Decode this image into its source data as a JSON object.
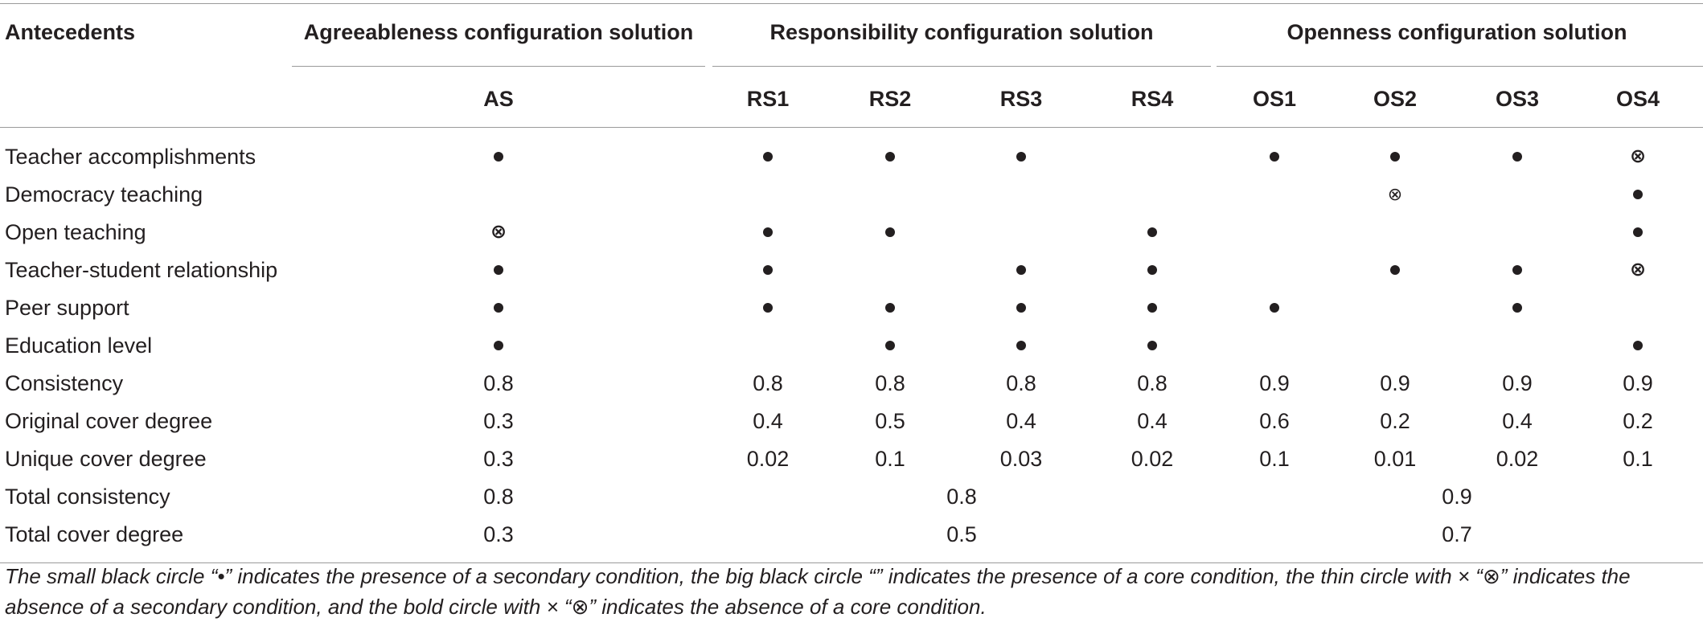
{
  "header": {
    "antecedents": "Antecedents",
    "group_agree": "Agreeableness configuration solution",
    "group_resp": "Responsibility configuration solution",
    "group_open": "Openness configuration solution",
    "cols": [
      "AS",
      "RS1",
      "RS2",
      "RS3",
      "RS4",
      "OS1",
      "OS2",
      "OS3",
      "OS4"
    ]
  },
  "rows": [
    {
      "label": "Teacher accomplishments",
      "cells": [
        "•",
        "•",
        "•",
        "•",
        "",
        "•",
        "•",
        "•",
        "⊗b"
      ]
    },
    {
      "label": "Democracy teaching",
      "cells": [
        "",
        "",
        "",
        "",
        "",
        "",
        "⊗",
        "",
        "•"
      ]
    },
    {
      "label": "Open teaching",
      "cells": [
        "⊗b",
        "•",
        "•",
        "",
        "•",
        "",
        "",
        "",
        "•"
      ]
    },
    {
      "label": "Teacher-student relationship",
      "cells": [
        "•",
        "•",
        "",
        "•",
        "•",
        "",
        "•",
        "•",
        "⊗b"
      ]
    },
    {
      "label": "Peer support",
      "cells": [
        "•",
        "•",
        "•",
        "•",
        "•",
        "•",
        "",
        "•",
        ""
      ]
    },
    {
      "label": "Education level",
      "cells": [
        "•",
        "",
        "•",
        "•",
        "•",
        "",
        "",
        "",
        "•"
      ]
    },
    {
      "label": "Consistency",
      "cells": [
        "0.8",
        "0.8",
        "0.8",
        "0.8",
        "0.8",
        "0.9",
        "0.9",
        "0.9",
        "0.9"
      ]
    },
    {
      "label": "Original cover degree",
      "cells": [
        "0.3",
        "0.4",
        "0.5",
        "0.4",
        "0.4",
        "0.6",
        "0.2",
        "0.4",
        "0.2"
      ]
    },
    {
      "label": "Unique cover degree",
      "cells": [
        "0.3",
        "0.02",
        "0.1",
        "0.03",
        "0.02",
        "0.1",
        "0.01",
        "0.02",
        "0.1"
      ]
    }
  ],
  "totals": [
    {
      "label": "Total consistency",
      "agree": "0.8",
      "resp": "0.8",
      "open": "0.9"
    },
    {
      "label": "Total cover degree",
      "agree": "0.3",
      "resp": "0.5",
      "open": "0.7"
    }
  ],
  "footnote": "The small black circle “•” indicates the presence of a secondary condition, the big black circle “” indicates the presence of a core condition, the thin circle with × “⊗” indicates the absence of a secondary condition, and the bold circle with × “⊗” indicates the absence of a core condition."
}
